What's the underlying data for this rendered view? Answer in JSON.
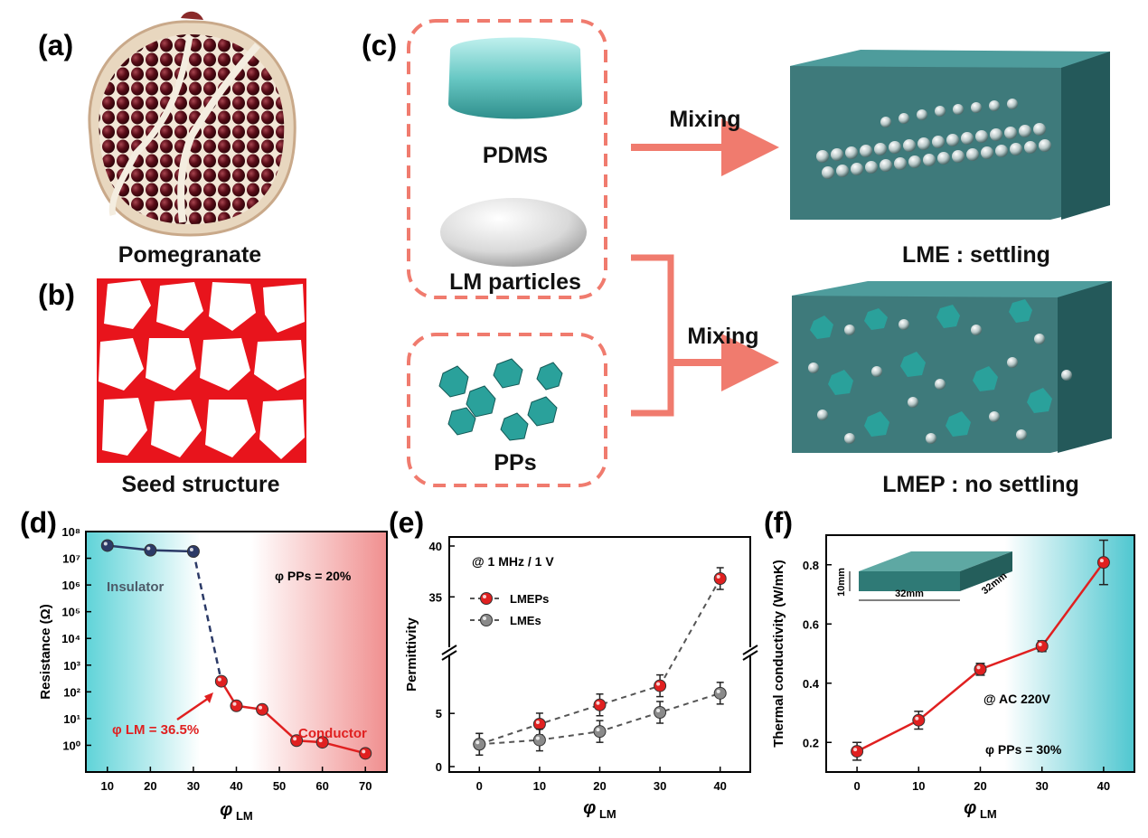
{
  "panels": {
    "a": {
      "letter": "(a)",
      "caption": "Pomegranate"
    },
    "b": {
      "letter": "(b)",
      "caption": "Seed structure"
    },
    "c": {
      "letter": "(c)",
      "materials": [
        "PDMS",
        "LM particles",
        "PPs"
      ],
      "mixing_top": "Mixing",
      "mixing_bottom": "Mixing",
      "result_top": "LME : settling",
      "result_bottom": "LMEP : no settling"
    },
    "d": {
      "letter": "(d)"
    },
    "e": {
      "letter": "(e)"
    },
    "f": {
      "letter": "(f)"
    }
  },
  "chart_data": [
    {
      "id": "d",
      "type": "line",
      "xlabel": "φ LM",
      "ylabel": "Resistance (Ω)",
      "yscale": "log",
      "xlim": [
        5,
        75
      ],
      "ylim": [
        0.1,
        100000000
      ],
      "xticks": [
        "10",
        "20",
        "30",
        "40",
        "50",
        "60",
        "70"
      ],
      "yticks": [
        "10⁸",
        "10⁷",
        "10⁶",
        "10⁵",
        "10⁴",
        "10³",
        "10²",
        "10¹",
        "10⁰"
      ],
      "annotations": {
        "insulator": "Insulator",
        "conductor": "Conductor",
        "phi_pps": "φ PPs = 20%",
        "phi_lm": "φ LM = 36.5%"
      },
      "series": [
        {
          "x": [
            10,
            20,
            30
          ],
          "y": [
            30000000,
            20000000,
            18000000
          ],
          "color": "#2b3a67",
          "style": "solid"
        },
        {
          "x": [
            30,
            36.5
          ],
          "y": [
            18000000,
            250
          ],
          "color": "#2b3a67",
          "style": "dashed"
        },
        {
          "x": [
            36.5,
            40,
            46,
            54,
            60,
            70
          ],
          "y": [
            250,
            30,
            22,
            1.5,
            1.3,
            0.5
          ],
          "color": "#e02020",
          "style": "solid"
        }
      ]
    },
    {
      "id": "e",
      "type": "line",
      "xlabel": "φ LM",
      "ylabel": "Permittivity",
      "xlim": [
        -5,
        45
      ],
      "xticks": [
        "0",
        "10",
        "20",
        "30",
        "40"
      ],
      "yticks_lower": [
        "0",
        "5"
      ],
      "yticks_upper": [
        "35",
        "40"
      ],
      "annotation": "@ 1 MHz / 1 V",
      "series": [
        {
          "name": "LMEPs",
          "color": "#e02020",
          "x": [
            0,
            10,
            20,
            30,
            40
          ],
          "y": [
            2.1,
            4.0,
            5.8,
            7.6,
            36.8
          ]
        },
        {
          "name": "LMEs",
          "color": "#8a8a8a",
          "x": [
            0,
            10,
            20,
            30,
            40
          ],
          "y": [
            2.1,
            2.5,
            3.3,
            5.1,
            6.9
          ]
        }
      ]
    },
    {
      "id": "f",
      "type": "line",
      "xlabel": "φ LM",
      "ylabel": "Thermal conductivity (W/mK)",
      "xlim": [
        -5,
        45
      ],
      "ylim": [
        0.1,
        0.9
      ],
      "xticks": [
        "0",
        "10",
        "20",
        "30",
        "40"
      ],
      "yticks": [
        "0.2",
        "0.4",
        "0.6",
        "0.8"
      ],
      "annotations": {
        "ac": "@ AC 220V",
        "phi_pps": "φ PPs = 30%",
        "dim_h": "10mm",
        "dim_w": "32mm",
        "dim_d": "32mm"
      },
      "series": [
        {
          "x": [
            0,
            10,
            20,
            30,
            40
          ],
          "y": [
            0.17,
            0.275,
            0.447,
            0.525,
            0.808
          ],
          "err": [
            0.03,
            0.03,
            0.02,
            0.018,
            0.075
          ],
          "color": "#e02020"
        }
      ]
    }
  ]
}
